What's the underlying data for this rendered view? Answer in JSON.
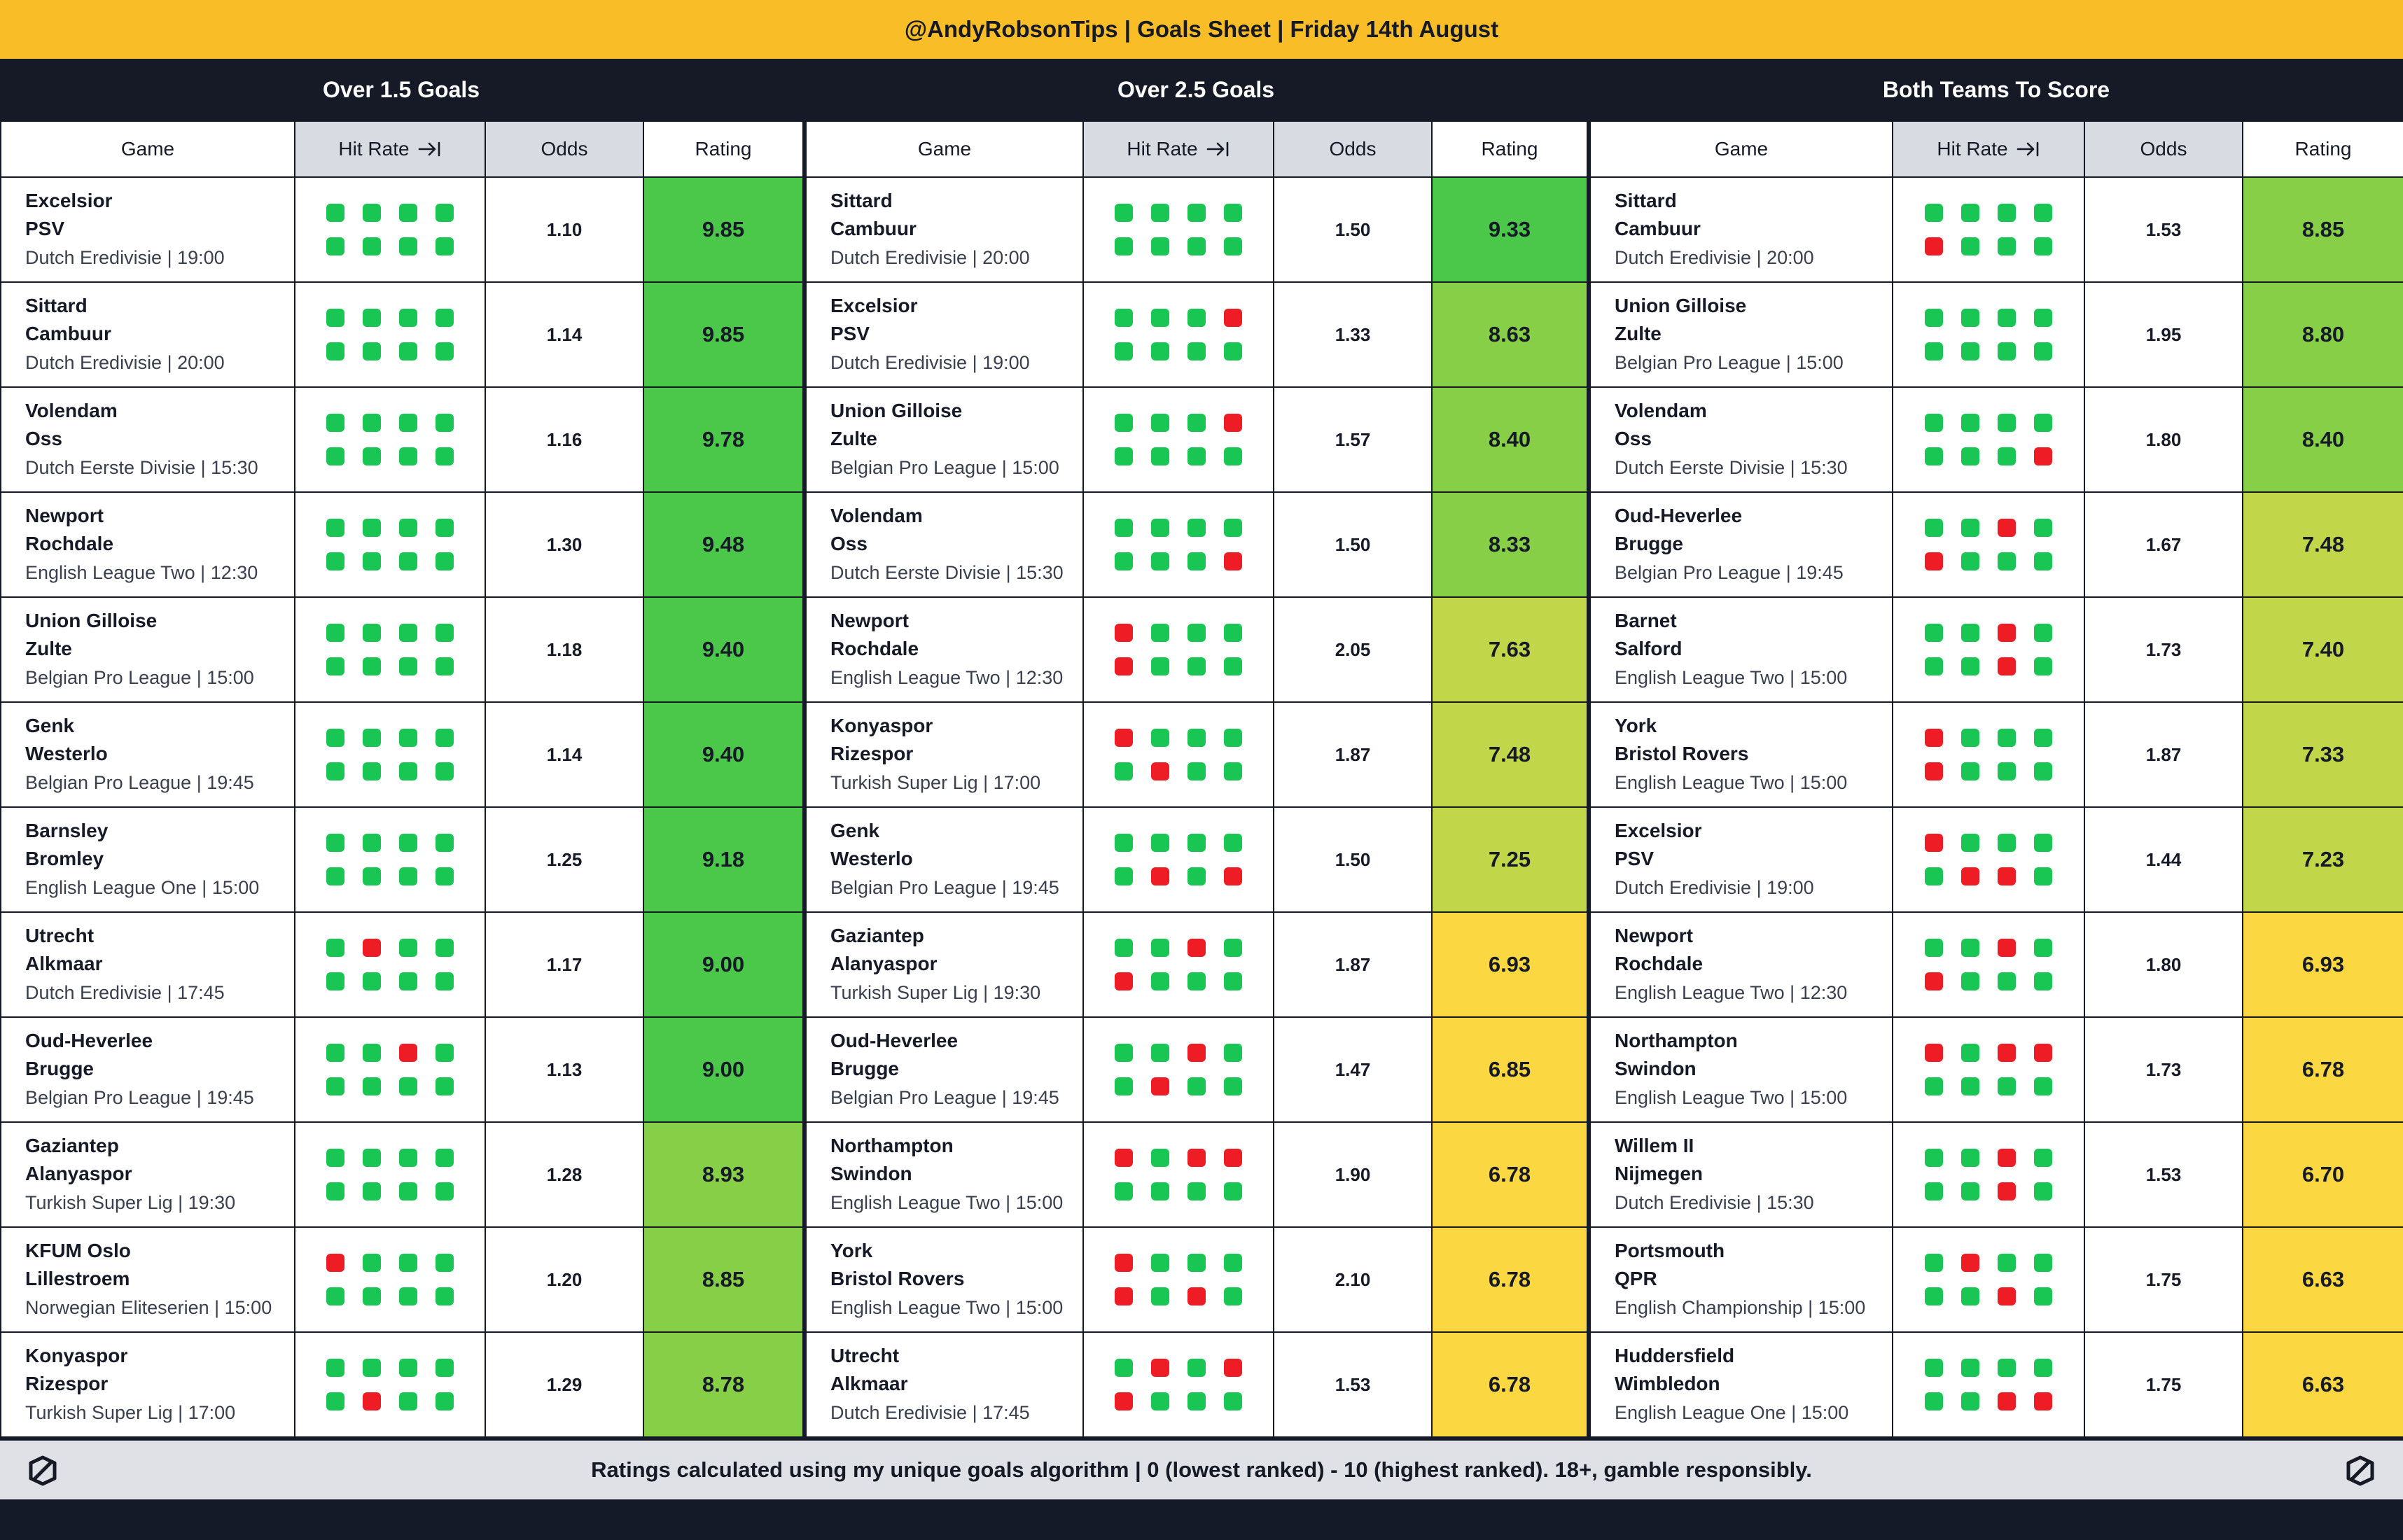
{
  "title": "@AndyRobsonTips | Goals Sheet | Friday 14th August",
  "headers": {
    "game": "Game",
    "hit_rate": "Hit Rate",
    "odds": "Odds",
    "rating": "Rating"
  },
  "footer": "Ratings calculated using my unique goals algorithm | 0 (lowest ranked) - 10 (highest ranked). 18+, gamble responsibly.",
  "colors": {
    "hit": "#19c653",
    "miss": "#ee1c25"
  },
  "sections": [
    {
      "title": "Over 1.5 Goals",
      "rows": [
        {
          "home": "Excelsior",
          "away": "PSV",
          "league": "Dutch Eredivisie | 19:00",
          "hits": "11111111",
          "odds": "1.10",
          "rating": "9.85",
          "color": "#4bc84a"
        },
        {
          "home": "Sittard",
          "away": "Cambuur",
          "league": "Dutch Eredivisie | 20:00",
          "hits": "11111111",
          "odds": "1.14",
          "rating": "9.85",
          "color": "#4bc84a"
        },
        {
          "home": "Volendam",
          "away": "Oss",
          "league": "Dutch Eerste Divisie | 15:30",
          "hits": "11111111",
          "odds": "1.16",
          "rating": "9.78",
          "color": "#4bc84a"
        },
        {
          "home": "Newport",
          "away": "Rochdale",
          "league": "English League Two | 12:30",
          "hits": "11111111",
          "odds": "1.30",
          "rating": "9.48",
          "color": "#4bc84a"
        },
        {
          "home": "Union Gilloise",
          "away": "Zulte",
          "league": "Belgian Pro League | 15:00",
          "hits": "11111111",
          "odds": "1.18",
          "rating": "9.40",
          "color": "#4bc84a"
        },
        {
          "home": "Genk",
          "away": "Westerlo",
          "league": "Belgian Pro League | 19:45",
          "hits": "11111111",
          "odds": "1.14",
          "rating": "9.40",
          "color": "#4bc84a"
        },
        {
          "home": "Barnsley",
          "away": "Bromley",
          "league": "English League One | 15:00",
          "hits": "11111111",
          "odds": "1.25",
          "rating": "9.18",
          "color": "#4bc84a"
        },
        {
          "home": "Utrecht",
          "away": "Alkmaar",
          "league": "Dutch Eredivisie | 17:45",
          "hits": "10111111",
          "odds": "1.17",
          "rating": "9.00",
          "color": "#4bc84a"
        },
        {
          "home": "Oud-Heverlee",
          "away": "Brugge",
          "league": "Belgian Pro League | 19:45",
          "hits": "11011111",
          "odds": "1.13",
          "rating": "9.00",
          "color": "#4bc84a"
        },
        {
          "home": "Gaziantep",
          "away": "Alanyaspor",
          "league": "Turkish Super Lig | 19:30",
          "hits": "11111111",
          "odds": "1.28",
          "rating": "8.93",
          "color": "#86cf47"
        },
        {
          "home": "KFUM Oslo",
          "away": "Lillestroem",
          "league": "Norwegian Eliteserien | 15:00",
          "hits": "01111111",
          "odds": "1.20",
          "rating": "8.85",
          "color": "#86cf47"
        },
        {
          "home": "Konyaspor",
          "away": "Rizespor",
          "league": "Turkish Super Lig | 17:00",
          "hits": "11111011",
          "odds": "1.29",
          "rating": "8.78",
          "color": "#86cf47"
        }
      ]
    },
    {
      "title": "Over 2.5 Goals",
      "rows": [
        {
          "home": "Sittard",
          "away": "Cambuur",
          "league": "Dutch Eredivisie | 20:00",
          "hits": "11111111",
          "odds": "1.50",
          "rating": "9.33",
          "color": "#4bc84a"
        },
        {
          "home": "Excelsior",
          "away": "PSV",
          "league": "Dutch Eredivisie | 19:00",
          "hits": "11101111",
          "odds": "1.33",
          "rating": "8.63",
          "color": "#86cf47"
        },
        {
          "home": "Union Gilloise",
          "away": "Zulte",
          "league": "Belgian Pro League | 15:00",
          "hits": "11101111",
          "odds": "1.57",
          "rating": "8.40",
          "color": "#86cf47"
        },
        {
          "home": "Volendam",
          "away": "Oss",
          "league": "Dutch Eerste Divisie | 15:30",
          "hits": "11111110",
          "odds": "1.50",
          "rating": "8.33",
          "color": "#86cf47"
        },
        {
          "home": "Newport",
          "away": "Rochdale",
          "league": "English League Two | 12:30",
          "hits": "01110111",
          "odds": "2.05",
          "rating": "7.63",
          "color": "#c2d64a"
        },
        {
          "home": "Konyaspor",
          "away": "Rizespor",
          "league": "Turkish Super Lig | 17:00",
          "hits": "01111011",
          "odds": "1.87",
          "rating": "7.48",
          "color": "#c2d64a"
        },
        {
          "home": "Genk",
          "away": "Westerlo",
          "league": "Belgian Pro League | 19:45",
          "hits": "11111010",
          "odds": "1.50",
          "rating": "7.25",
          "color": "#c2d64a"
        },
        {
          "home": "Gaziantep",
          "away": "Alanyaspor",
          "league": "Turkish Super Lig | 19:30",
          "hits": "11010111",
          "odds": "1.87",
          "rating": "6.93",
          "color": "#fbd842"
        },
        {
          "home": "Oud-Heverlee",
          "away": "Brugge",
          "league": "Belgian Pro League | 19:45",
          "hits": "11011011",
          "odds": "1.47",
          "rating": "6.85",
          "color": "#fbd842"
        },
        {
          "home": "Northampton",
          "away": "Swindon",
          "league": "English League Two | 15:00",
          "hits": "01001111",
          "odds": "1.90",
          "rating": "6.78",
          "color": "#fbd842"
        },
        {
          "home": "York",
          "away": "Bristol Rovers",
          "league": "English League Two | 15:00",
          "hits": "01110101",
          "odds": "2.10",
          "rating": "6.78",
          "color": "#fbd842"
        },
        {
          "home": "Utrecht",
          "away": "Alkmaar",
          "league": "Dutch Eredivisie | 17:45",
          "hits": "10100111",
          "odds": "1.53",
          "rating": "6.78",
          "color": "#fbd842"
        }
      ]
    },
    {
      "title": "Both Teams To Score",
      "rows": [
        {
          "home": "Sittard",
          "away": "Cambuur",
          "league": "Dutch Eredivisie | 20:00",
          "hits": "11110111",
          "odds": "1.53",
          "rating": "8.85",
          "color": "#86cf47"
        },
        {
          "home": "Union Gilloise",
          "away": "Zulte",
          "league": "Belgian Pro League | 15:00",
          "hits": "11111111",
          "odds": "1.95",
          "rating": "8.80",
          "color": "#86cf47"
        },
        {
          "home": "Volendam",
          "away": "Oss",
          "league": "Dutch Eerste Divisie | 15:30",
          "hits": "11111110",
          "odds": "1.80",
          "rating": "8.40",
          "color": "#86cf47"
        },
        {
          "home": "Oud-Heverlee",
          "away": "Brugge",
          "league": "Belgian Pro League | 19:45",
          "hits": "11010111",
          "odds": "1.67",
          "rating": "7.48",
          "color": "#c2d64a"
        },
        {
          "home": "Barnet",
          "away": "Salford",
          "league": "English League Two | 15:00",
          "hits": "11011101",
          "odds": "1.73",
          "rating": "7.40",
          "color": "#c2d64a"
        },
        {
          "home": "York",
          "away": "Bristol Rovers",
          "league": "English League Two | 15:00",
          "hits": "01110111",
          "odds": "1.87",
          "rating": "7.33",
          "color": "#c2d64a"
        },
        {
          "home": "Excelsior",
          "away": "PSV",
          "league": "Dutch Eredivisie | 19:00",
          "hits": "01111001",
          "odds": "1.44",
          "rating": "7.23",
          "color": "#c2d64a"
        },
        {
          "home": "Newport",
          "away": "Rochdale",
          "league": "English League Two | 12:30",
          "hits": "11010111",
          "odds": "1.80",
          "rating": "6.93",
          "color": "#fbd842"
        },
        {
          "home": "Northampton",
          "away": "Swindon",
          "league": "English League Two | 15:00",
          "hits": "01001111",
          "odds": "1.73",
          "rating": "6.78",
          "color": "#fbd842"
        },
        {
          "home": "Willem II",
          "away": "Nijmegen",
          "league": "Dutch Eredivisie | 15:30",
          "hits": "11011101",
          "odds": "1.53",
          "rating": "6.70",
          "color": "#fbd842"
        },
        {
          "home": "Portsmouth",
          "away": "QPR",
          "league": "English Championship | 15:00",
          "hits": "10111101",
          "odds": "1.75",
          "rating": "6.63",
          "color": "#fbd842"
        },
        {
          "home": "Huddersfield",
          "away": "Wimbledon",
          "league": "English League One | 15:00",
          "hits": "11111100",
          "odds": "1.75",
          "rating": "6.63",
          "color": "#fbd842"
        }
      ]
    }
  ]
}
